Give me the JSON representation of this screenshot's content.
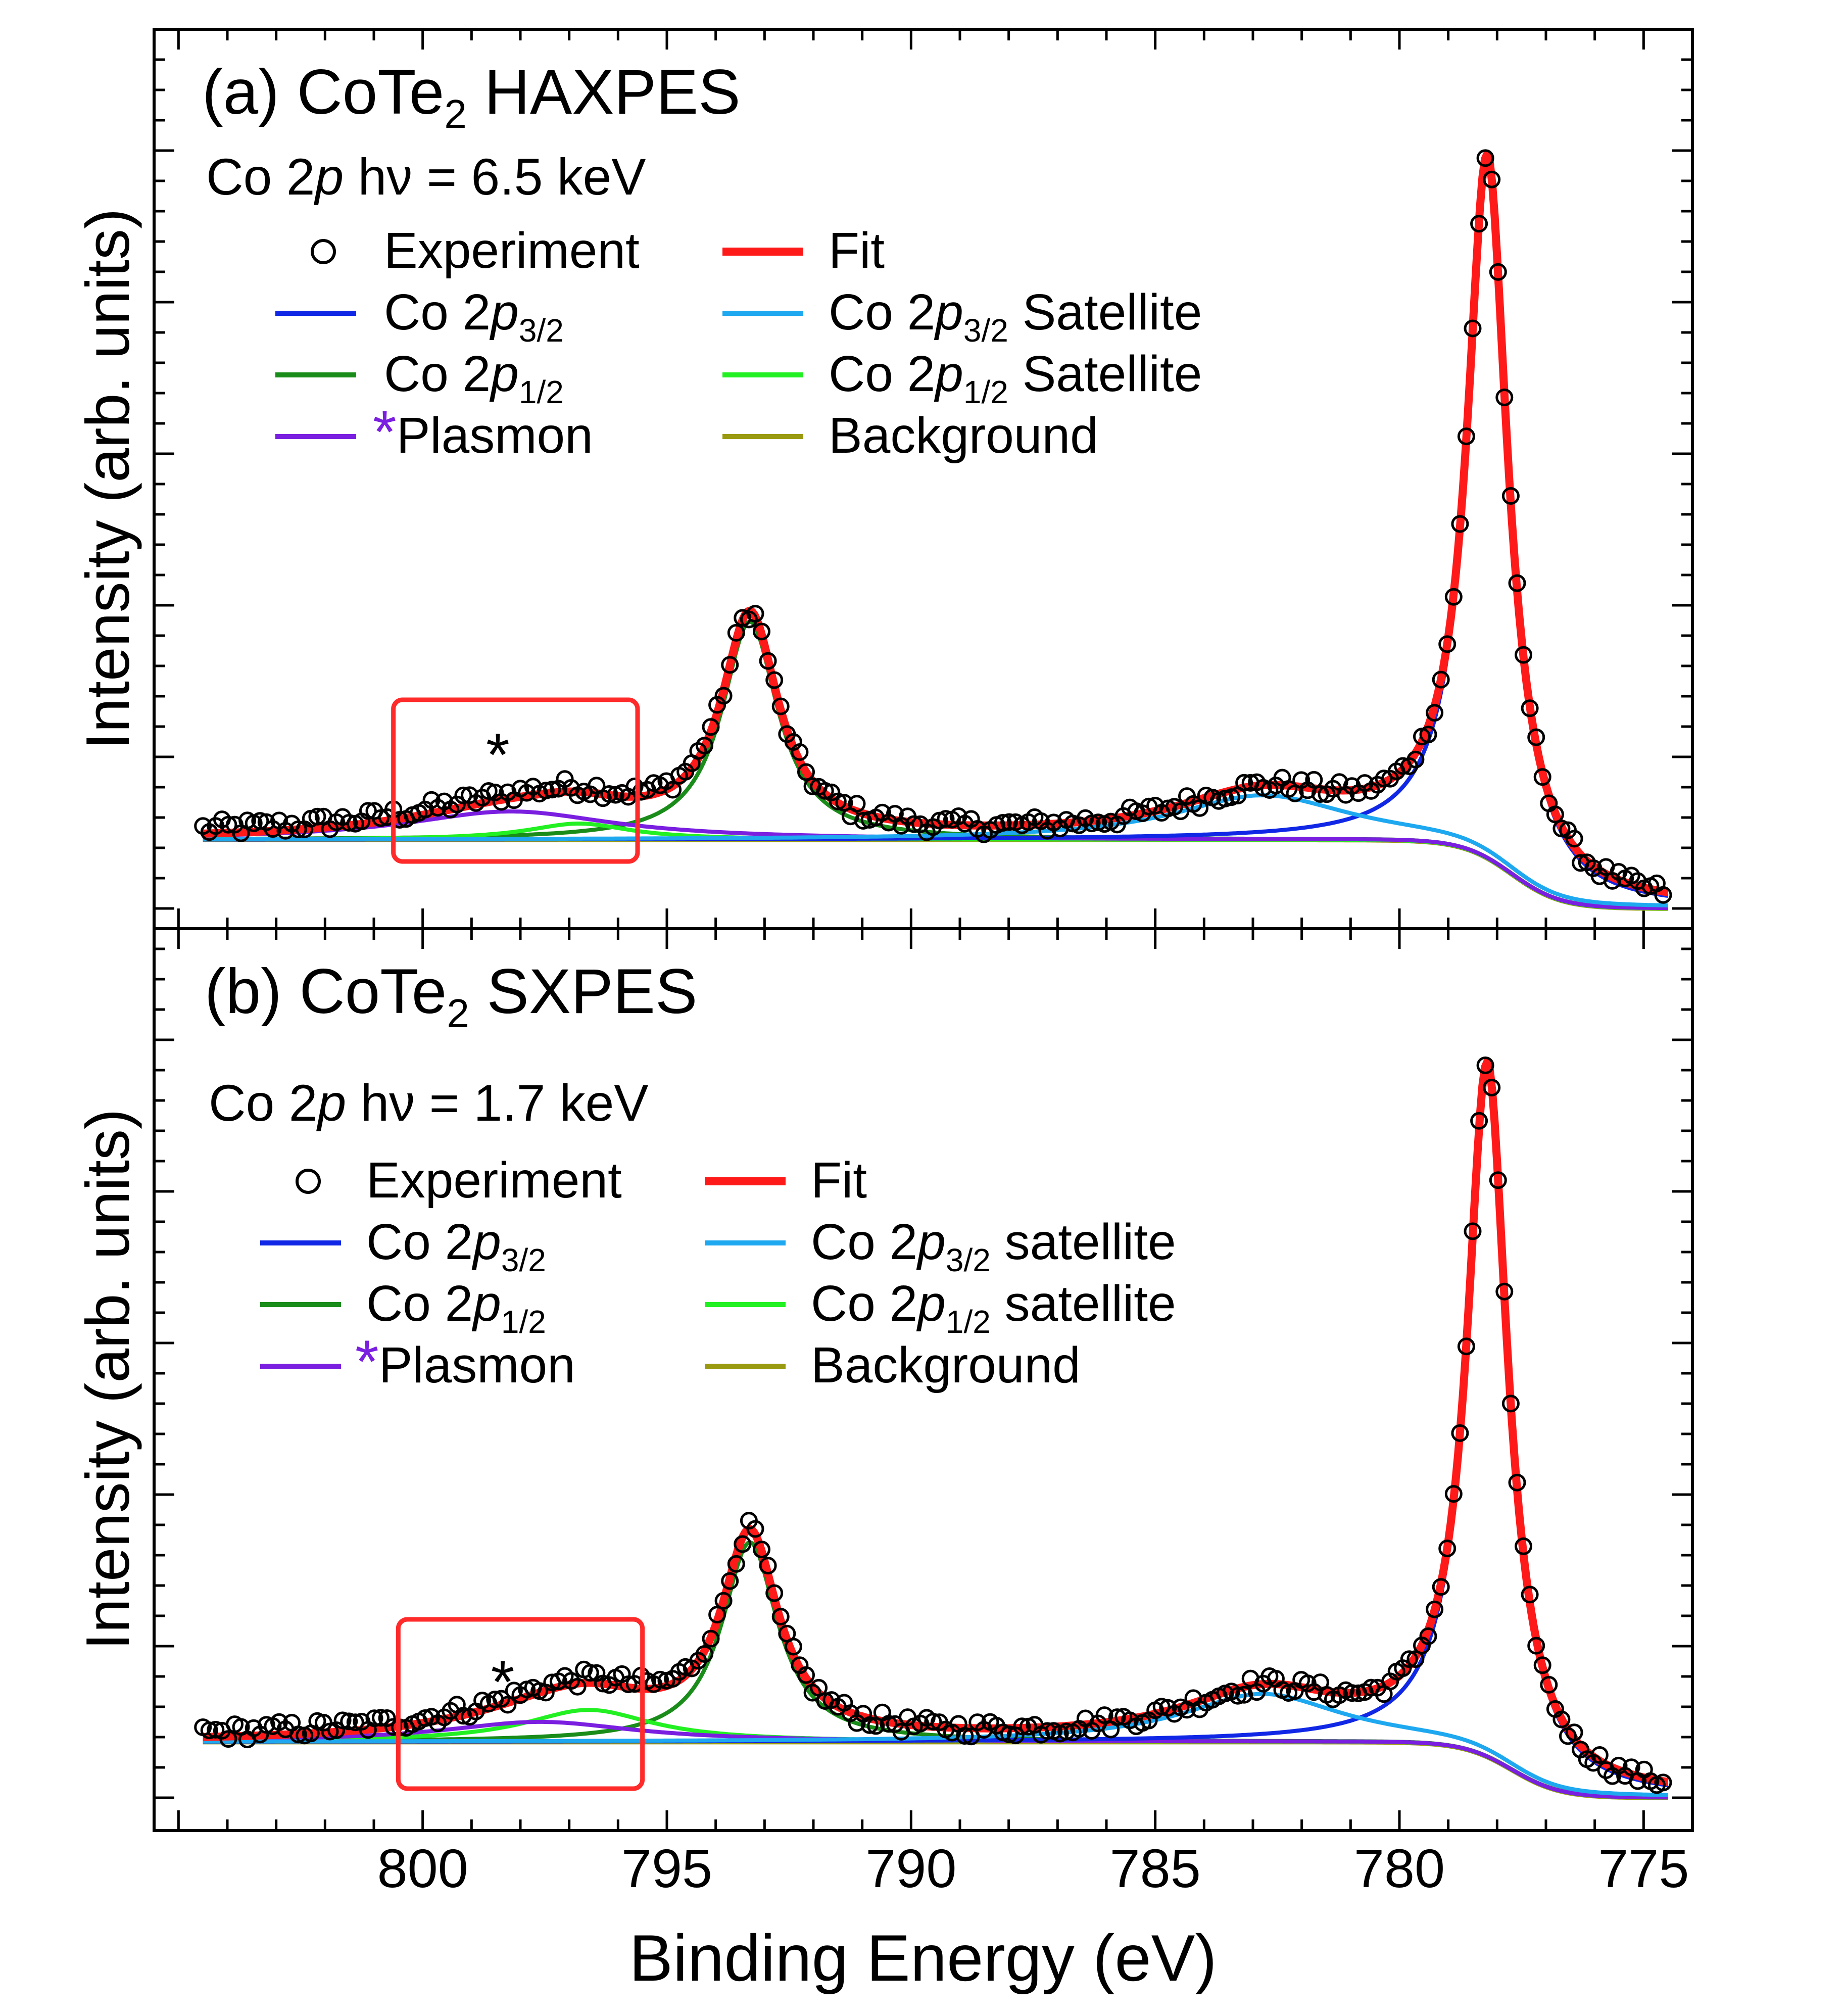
{
  "xaxis": {
    "label": "Binding Energy (eV)",
    "range": [
      805.5,
      774
    ],
    "ticks": [
      "800",
      "795",
      "790",
      "785",
      "780",
      "775"
    ],
    "tick_values": [
      800,
      795,
      790,
      785,
      780,
      775
    ]
  },
  "colors": {
    "fit": "#ff1a1a",
    "p32": "#1028e6",
    "p32_sat": "#1ea8f0",
    "p12": "#1a8c1a",
    "p12_sat": "#22f022",
    "plasmon": "#7a1ee0",
    "background": "#9a9a10",
    "box": "#ff2a2a"
  },
  "chart_data": [
    {
      "type": "line",
      "panel_id": "a",
      "title_prefix": "(a) CoTe",
      "title_sub": "2",
      "title_suffix": " HAXPES",
      "condition": {
        "label": "Co 2",
        "orbital": "p",
        "energy": " hν = 6.5 keV"
      },
      "ylabel": "Intensity (arb. units)",
      "ylim": [
        0,
        1.0
      ],
      "plasmon_marker": "*",
      "box_range": [
        800.6,
        795.6
      ],
      "legend": [
        {
          "key": "exp",
          "prefix": "Experiment",
          "italic": "",
          "sub": "",
          "suffix": ""
        },
        {
          "key": "fit",
          "prefix": "Fit",
          "italic": "",
          "sub": "",
          "suffix": ""
        },
        {
          "key": "p32",
          "prefix": "Co 2",
          "italic": "p",
          "sub": "3/2",
          "suffix": ""
        },
        {
          "key": "p32_sat",
          "prefix": "Co 2",
          "italic": "p",
          "sub": "3/2",
          "suffix": " Satellite"
        },
        {
          "key": "p12",
          "prefix": "Co 2",
          "italic": "p",
          "sub": "1/2",
          "suffix": ""
        },
        {
          "key": "p12_sat",
          "prefix": "Co 2",
          "italic": "p",
          "sub": "1/2",
          "suffix": " Satellite"
        },
        {
          "key": "plasmon",
          "prefix": "Plasmon",
          "italic": "",
          "sub": "",
          "suffix": "",
          "star": "*"
        },
        {
          "key": "background",
          "prefix": "Background",
          "italic": "",
          "sub": "",
          "suffix": ""
        }
      ],
      "components": {
        "bg_high": 0.085,
        "bg_low": 0.0,
        "bg_step_center": 777.7,
        "bg_step_width": 0.5,
        "p32": {
          "center": 778.2,
          "amp": 0.86,
          "width": 0.5
        },
        "p32_sat": {
          "center": 782.8,
          "amp": 0.055,
          "width": 2.2
        },
        "p12": {
          "center": 793.3,
          "amp": 0.27,
          "width": 0.7
        },
        "p12_sat": {
          "center": 796.8,
          "amp": 0.02,
          "width": 1.3
        },
        "plasmon": {
          "center": 798.2,
          "amp": 0.035,
          "width": 2.6
        }
      }
    },
    {
      "type": "line",
      "panel_id": "b",
      "title_prefix": "(b) CoTe",
      "title_sub": "2",
      "title_suffix": " SXPES",
      "condition": {
        "label": "Co 2",
        "orbital": "p",
        "energy": " hν = 1.7 keV"
      },
      "ylabel": "Intensity (arb. units)",
      "ylim": [
        0,
        1.0
      ],
      "plasmon_marker": "*",
      "box_range": [
        800.5,
        795.5
      ],
      "legend": [
        {
          "key": "exp",
          "prefix": "Experiment",
          "italic": "",
          "sub": "",
          "suffix": ""
        },
        {
          "key": "fit",
          "prefix": "Fit",
          "italic": "",
          "sub": "",
          "suffix": ""
        },
        {
          "key": "p32",
          "prefix": "Co 2",
          "italic": "p",
          "sub": "3/2",
          "suffix": ""
        },
        {
          "key": "p32_sat",
          "prefix": "Co 2",
          "italic": "p",
          "sub": "3/2",
          "suffix": " satellite"
        },
        {
          "key": "p12",
          "prefix": "Co 2",
          "italic": "p",
          "sub": "1/2",
          "suffix": ""
        },
        {
          "key": "p12_sat",
          "prefix": "Co 2",
          "italic": "p",
          "sub": "1/2",
          "suffix": " satellite"
        },
        {
          "key": "plasmon",
          "prefix": "Plasmon",
          "italic": "",
          "sub": "",
          "suffix": "",
          "star": "*"
        },
        {
          "key": "background",
          "prefix": "Background",
          "italic": "",
          "sub": "",
          "suffix": ""
        }
      ],
      "components": {
        "bg_high": 0.07,
        "bg_low": 0.0,
        "bg_step_center": 777.7,
        "bg_step_width": 0.5,
        "p32": {
          "center": 778.2,
          "amp": 0.86,
          "width": 0.5
        },
        "p32_sat": {
          "center": 782.8,
          "amp": 0.06,
          "width": 2.0
        },
        "p12": {
          "center": 793.3,
          "amp": 0.25,
          "width": 0.7
        },
        "p12_sat": {
          "center": 796.6,
          "amp": 0.04,
          "width": 1.6
        },
        "plasmon": {
          "center": 797.6,
          "amp": 0.025,
          "width": 2.4
        }
      }
    }
  ]
}
